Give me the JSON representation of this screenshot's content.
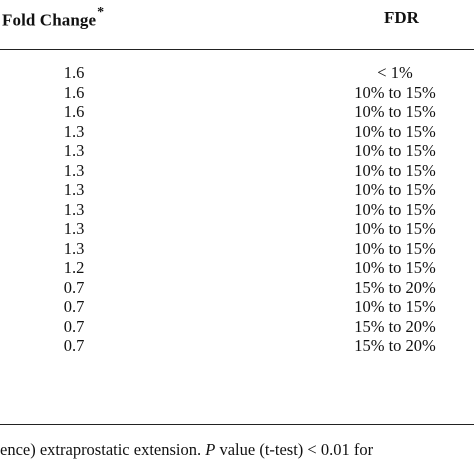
{
  "table": {
    "headers": {
      "fold_change": "Fold Change",
      "fold_change_mark": "*",
      "fdr": "FDR"
    },
    "rows": [
      {
        "fold_change": "1.6",
        "fdr": "< 1%"
      },
      {
        "fold_change": "1.6",
        "fdr": "10% to 15%"
      },
      {
        "fold_change": "1.6",
        "fdr": "10% to 15%"
      },
      {
        "fold_change": "1.3",
        "fdr": "10% to 15%"
      },
      {
        "fold_change": "1.3",
        "fdr": "10% to 15%"
      },
      {
        "fold_change": "1.3",
        "fdr": "10% to 15%"
      },
      {
        "fold_change": "1.3",
        "fdr": "10% to 15%"
      },
      {
        "fold_change": "1.3",
        "fdr": "10% to 15%"
      },
      {
        "fold_change": "1.3",
        "fdr": "10% to 15%"
      },
      {
        "fold_change": "1.3",
        "fdr": "10% to 15%"
      },
      {
        "fold_change": "1.2",
        "fdr": "10% to 15%"
      },
      {
        "fold_change": "0.7",
        "fdr": "15% to 20%"
      },
      {
        "fold_change": "0.7",
        "fdr": "10% to 15%"
      },
      {
        "fold_change": "0.7",
        "fdr": "15% to 20%"
      },
      {
        "fold_change": "0.7",
        "fdr": "15% to 20%"
      }
    ]
  },
  "footnote": {
    "before_italic": "ence) extraprostatic extension. ",
    "italic": "P",
    "after_italic": " value (t-test) < 0.01 for"
  }
}
